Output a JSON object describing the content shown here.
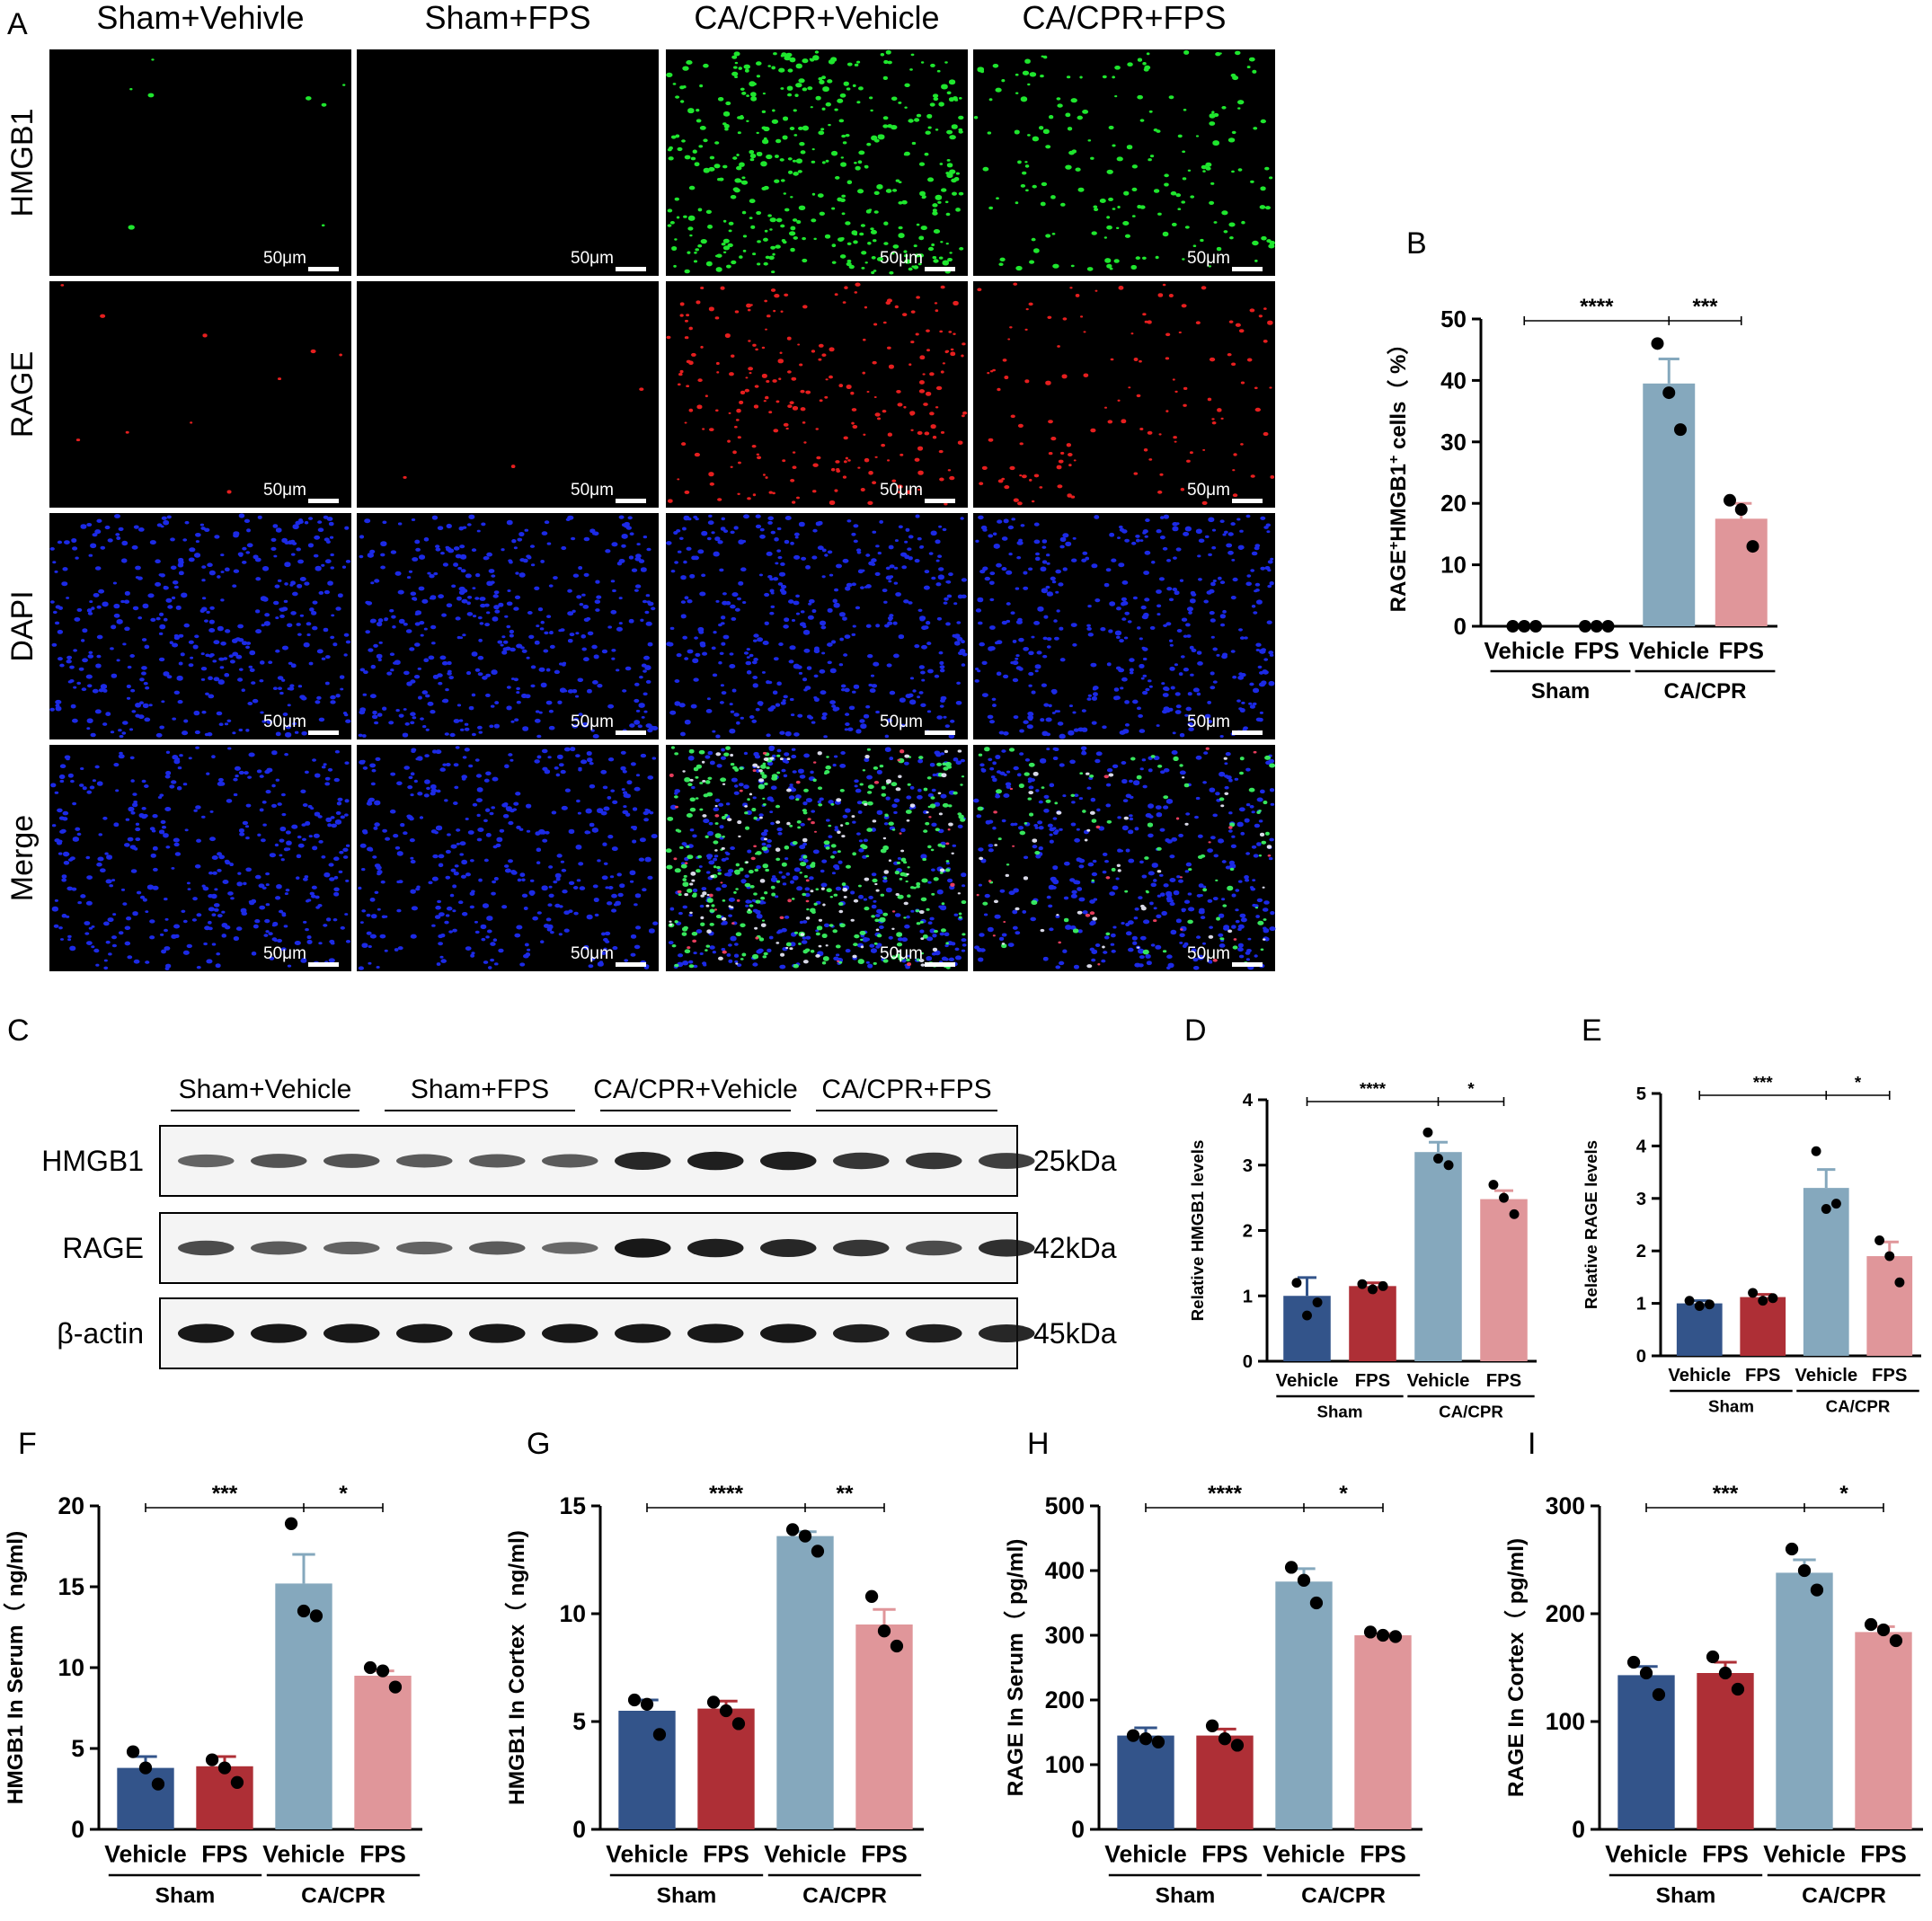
{
  "panel_a": {
    "letter": "A",
    "columns": [
      "Sham+Vehivle",
      "Sham+FPS",
      "CA/CPR+Vehicle",
      "CA/CPR+FPS"
    ],
    "rows": [
      "HMGB1",
      "RAGE",
      "DAPI",
      "Merge"
    ],
    "scale_label": "50μm",
    "colors": {
      "HMGB1": "#22ff33",
      "RAGE": "#ff2222",
      "DAPI": "#1f2fff"
    }
  },
  "panel_c": {
    "letter": "C",
    "groups": [
      "Sham+Vehicle",
      "Sham+FPS",
      "CA/CPR+Vehicle",
      "CA/CPR+FPS"
    ],
    "bands": [
      {
        "label": "HMGB1",
        "size": "25kDa",
        "intensity": [
          0.45,
          0.55,
          0.55,
          0.5,
          0.5,
          0.5,
          0.85,
          0.9,
          0.9,
          0.75,
          0.75,
          0.7
        ]
      },
      {
        "label": "RAGE",
        "size": "42kDa",
        "intensity": [
          0.6,
          0.5,
          0.45,
          0.45,
          0.5,
          0.4,
          0.95,
          0.9,
          0.85,
          0.75,
          0.6,
          0.8
        ]
      },
      {
        "label": "β-actin",
        "size": "45kDa",
        "intensity": [
          0.95,
          0.95,
          0.95,
          0.95,
          0.95,
          0.95,
          0.95,
          0.95,
          0.95,
          0.9,
          0.9,
          0.85
        ]
      }
    ]
  },
  "bar_style": {
    "colors": [
      "#33548a",
      "#ae2f36",
      "#85a8bd",
      "#e0969a"
    ]
  },
  "chart_data": [
    {
      "id": "B",
      "type": "bar",
      "ylabel": "RAGE⁺HMGB1⁺ cells（ %）",
      "ylabel_main": "RAGE",
      "ylabel_sup1": "+",
      "ylabel_mid": "HMGB1",
      "ylabel_sup2": "+",
      "ylabel_end": " cells（ %）",
      "ylim": [
        0,
        50
      ],
      "ticks": [
        0,
        10,
        20,
        30,
        40,
        50
      ],
      "categories": [
        "Vehicle",
        "FPS",
        "Vehicle",
        "FPS"
      ],
      "groups": [
        "Sham",
        "CA/CPR"
      ],
      "values": [
        0,
        0,
        39.5,
        17.5
      ],
      "errors": [
        0,
        0,
        4,
        2.5
      ],
      "points": [
        [
          0,
          0,
          0
        ],
        [
          0,
          0,
          0
        ],
        [
          46,
          38,
          32
        ],
        [
          20.5,
          19,
          13
        ]
      ],
      "sig": [
        {
          "label": "****"
        },
        {
          "label": "***"
        }
      ]
    },
    {
      "id": "D",
      "type": "bar",
      "ylabel": "Relative HMGB1 levels",
      "ylim": [
        0,
        4
      ],
      "ticks": [
        0,
        1,
        2,
        3,
        4
      ],
      "categories": [
        "Vehicle",
        "FPS",
        "Vehicle",
        "FPS"
      ],
      "groups": [
        "Sham",
        "CA/CPR"
      ],
      "values": [
        1.0,
        1.15,
        3.2,
        2.48
      ],
      "errors": [
        0.28,
        0.05,
        0.15,
        0.13
      ],
      "points": [
        [
          1.2,
          0.7,
          0.9
        ],
        [
          1.18,
          1.1,
          1.15
        ],
        [
          3.5,
          3.1,
          3.0
        ],
        [
          2.7,
          2.5,
          2.25
        ]
      ],
      "sig": [
        {
          "label": "****"
        },
        {
          "label": "*"
        }
      ]
    },
    {
      "id": "E",
      "type": "bar",
      "ylabel": "Relative RAGE levels",
      "ylim": [
        0,
        5
      ],
      "ticks": [
        0,
        1,
        2,
        3,
        4,
        5
      ],
      "categories": [
        "Vehicle",
        "FPS",
        "Vehicle",
        "FPS"
      ],
      "groups": [
        "Sham",
        "CA/CPR"
      ],
      "values": [
        1.0,
        1.12,
        3.2,
        1.9
      ],
      "errors": [
        0.05,
        0.05,
        0.35,
        0.27
      ],
      "points": [
        [
          1.05,
          0.95,
          0.98
        ],
        [
          1.2,
          1.05,
          1.1
        ],
        [
          3.9,
          2.8,
          2.9
        ],
        [
          2.2,
          1.9,
          1.4
        ]
      ],
      "sig": [
        {
          "label": "***"
        },
        {
          "label": "*"
        }
      ]
    },
    {
      "id": "F",
      "type": "bar",
      "ylabel": "HMGB1 In Serum（ ng/ml)",
      "ylim": [
        0,
        20
      ],
      "ticks": [
        0,
        5,
        10,
        15,
        20
      ],
      "categories": [
        "Vehicle",
        "FPS",
        "Vehicle",
        "FPS"
      ],
      "groups": [
        "Sham",
        "CA/CPR"
      ],
      "values": [
        3.8,
        3.9,
        15.2,
        9.5
      ],
      "errors": [
        0.7,
        0.6,
        1.8,
        0.3
      ],
      "points": [
        [
          4.8,
          3.8,
          2.8
        ],
        [
          4.3,
          3.8,
          2.9
        ],
        [
          18.9,
          13.5,
          13.2
        ],
        [
          10,
          9.8,
          8.8
        ]
      ],
      "sig": [
        {
          "label": "***"
        },
        {
          "label": "*"
        }
      ]
    },
    {
      "id": "G",
      "type": "bar",
      "ylabel": "HMGB1 In Cortex（ ng/ml)",
      "ylim": [
        0,
        15
      ],
      "ticks": [
        0,
        5,
        10,
        15
      ],
      "categories": [
        "Vehicle",
        "FPS",
        "Vehicle",
        "FPS"
      ],
      "groups": [
        "Sham",
        "CA/CPR"
      ],
      "values": [
        5.5,
        5.6,
        13.6,
        9.5
      ],
      "errors": [
        0.5,
        0.35,
        0.2,
        0.7
      ],
      "points": [
        [
          6.0,
          5.8,
          4.4
        ],
        [
          5.9,
          5.5,
          4.9
        ],
        [
          13.9,
          13.6,
          12.9
        ],
        [
          10.8,
          9.2,
          8.5
        ]
      ],
      "sig": [
        {
          "label": "****"
        },
        {
          "label": "**"
        }
      ]
    },
    {
      "id": "H",
      "type": "bar",
      "ylabel": "RAGE In Serum（ pg/ml)",
      "ylim": [
        0,
        500
      ],
      "ticks": [
        0,
        100,
        200,
        300,
        400,
        500
      ],
      "categories": [
        "Vehicle",
        "FPS",
        "Vehicle",
        "FPS"
      ],
      "groups": [
        "Sham",
        "CA/CPR"
      ],
      "values": [
        145,
        145,
        383,
        300
      ],
      "errors": [
        12,
        10,
        20,
        3
      ],
      "points": [
        [
          145,
          140,
          135
        ],
        [
          160,
          140,
          130
        ],
        [
          405,
          385,
          350
        ],
        [
          305,
          300,
          298
        ]
      ],
      "sig": [
        {
          "label": "****"
        },
        {
          "label": "*"
        }
      ]
    },
    {
      "id": "I",
      "type": "bar",
      "ylabel": "RAGE In Cortex（ pg/ml)",
      "ylim": [
        0,
        300
      ],
      "ticks": [
        0,
        100,
        200,
        300
      ],
      "categories": [
        "Vehicle",
        "FPS",
        "Vehicle",
        "FPS"
      ],
      "groups": [
        "Sham",
        "CA/CPR"
      ],
      "values": [
        143,
        145,
        238,
        183
      ],
      "errors": [
        8,
        10,
        12,
        5
      ],
      "points": [
        [
          155,
          145,
          125
        ],
        [
          160,
          145,
          130
        ],
        [
          260,
          240,
          222
        ],
        [
          190,
          185,
          175
        ]
      ],
      "sig": [
        {
          "label": "***"
        },
        {
          "label": "*"
        }
      ]
    }
  ]
}
